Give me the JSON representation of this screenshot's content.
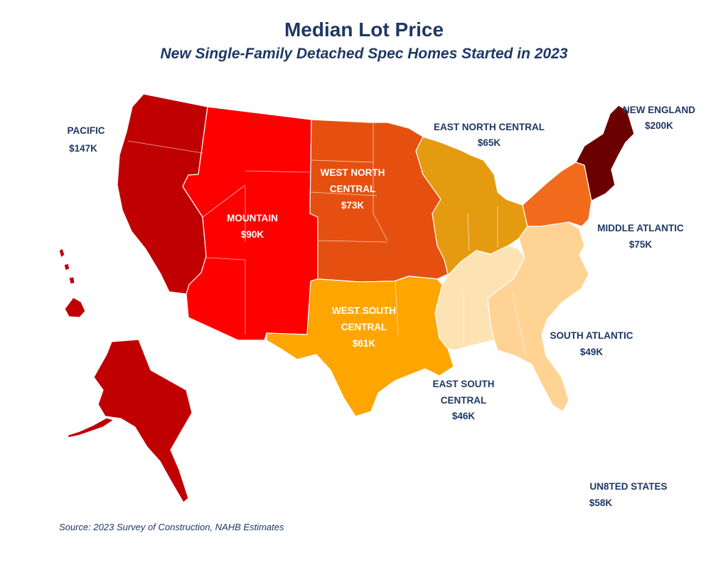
{
  "title": "Median Lot Price",
  "subtitle": "New Single-Family Detached Spec Homes Started in 2023",
  "source": "Source: 2023 Survey of Construction, NAHB Estimates",
  "regions": {
    "pacific": {
      "name": "PACIFIC",
      "value": "$147K",
      "color": "#c00000"
    },
    "mountain": {
      "name": "MOUNTAIN",
      "value": "$90K",
      "color": "#ff0000"
    },
    "west_north_central": {
      "name_line1": "WEST NORTH",
      "name_line2": "CENTRAL",
      "value": "$73K",
      "color": "#e55010"
    },
    "west_south_central": {
      "name_line1": "WEST SOUTH",
      "name_line2": "CENTRAL",
      "value": "$61K",
      "color": "#ffa500"
    },
    "east_north_central": {
      "name": "EAST NORTH CENTRAL",
      "value": "$65K",
      "color": "#e49b0f"
    },
    "east_south_central": {
      "name_line1": "EAST SOUTH",
      "name_line2": "CENTRAL",
      "value": "$46K",
      "color": "#fde3b3"
    },
    "south_atlantic": {
      "name": "SOUTH ATLANTIC",
      "value": "$49K",
      "color": "#ffd394"
    },
    "middle_atlantic": {
      "name": "MIDDLE ATLANTIC",
      "value": "$75K",
      "color": "#f26b1d"
    },
    "new_england": {
      "name": "NEW ENGLAND",
      "value": "$200K",
      "color": "#6b0000"
    }
  },
  "united_states": {
    "name": "UN8TED STATES",
    "value": "$58K"
  }
}
